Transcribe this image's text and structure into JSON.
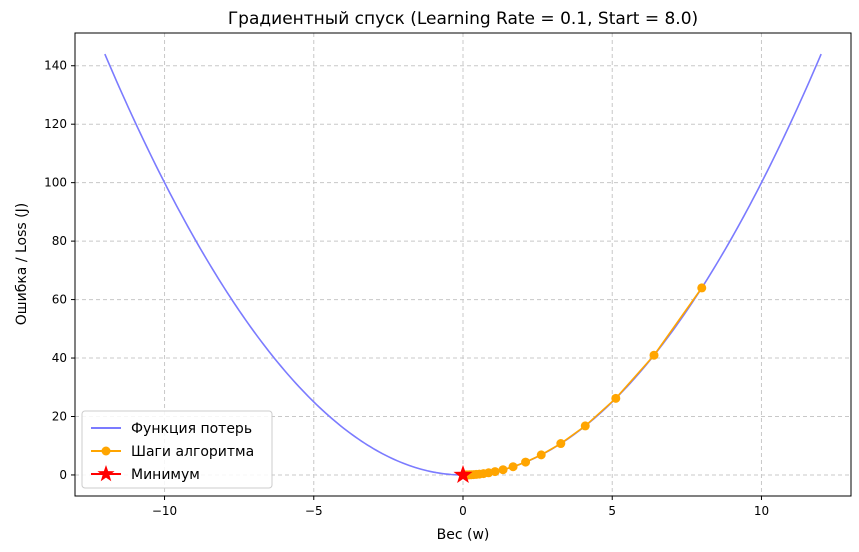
{
  "chart_data": {
    "type": "line",
    "title": "Градиентный спуск (Learning Rate = 0.1, Start = 8.0)",
    "xlabel": "Вес (w)",
    "ylabel": "Ошибка / Loss (J)",
    "xlim": [
      -13.0,
      13.0
    ],
    "ylim": [
      -7.2,
      151.2
    ],
    "x_ticks": [
      -10,
      -5,
      0,
      5,
      10
    ],
    "y_ticks": [
      0,
      20,
      40,
      60,
      80,
      100,
      120,
      140
    ],
    "grid": true,
    "legend_position": "lower-left",
    "series": [
      {
        "name": "Функция потерь",
        "kind": "line",
        "color": "#7b7bff",
        "function": "w^2",
        "x_range": [
          -12,
          12
        ]
      },
      {
        "name": "Шаги алгоритма",
        "kind": "line-markers",
        "color": "#ffa500",
        "x": [
          8.0,
          6.4,
          5.12,
          4.096,
          3.277,
          2.621,
          2.097,
          1.678,
          1.342,
          1.074,
          0.859,
          0.687,
          0.55,
          0.44,
          0.352,
          0.281,
          0.225,
          0.18,
          0.144,
          0.115,
          0.092
        ],
        "y": [
          64.0,
          40.96,
          26.21,
          16.78,
          10.74,
          6.87,
          4.4,
          2.81,
          1.8,
          1.15,
          0.74,
          0.47,
          0.3,
          0.19,
          0.12,
          0.079,
          0.051,
          0.032,
          0.021,
          0.013,
          0.0085
        ]
      },
      {
        "name": "Минимум",
        "kind": "marker",
        "marker": "star",
        "color": "#ff0000",
        "x": [
          0
        ],
        "y": [
          0
        ]
      }
    ]
  }
}
